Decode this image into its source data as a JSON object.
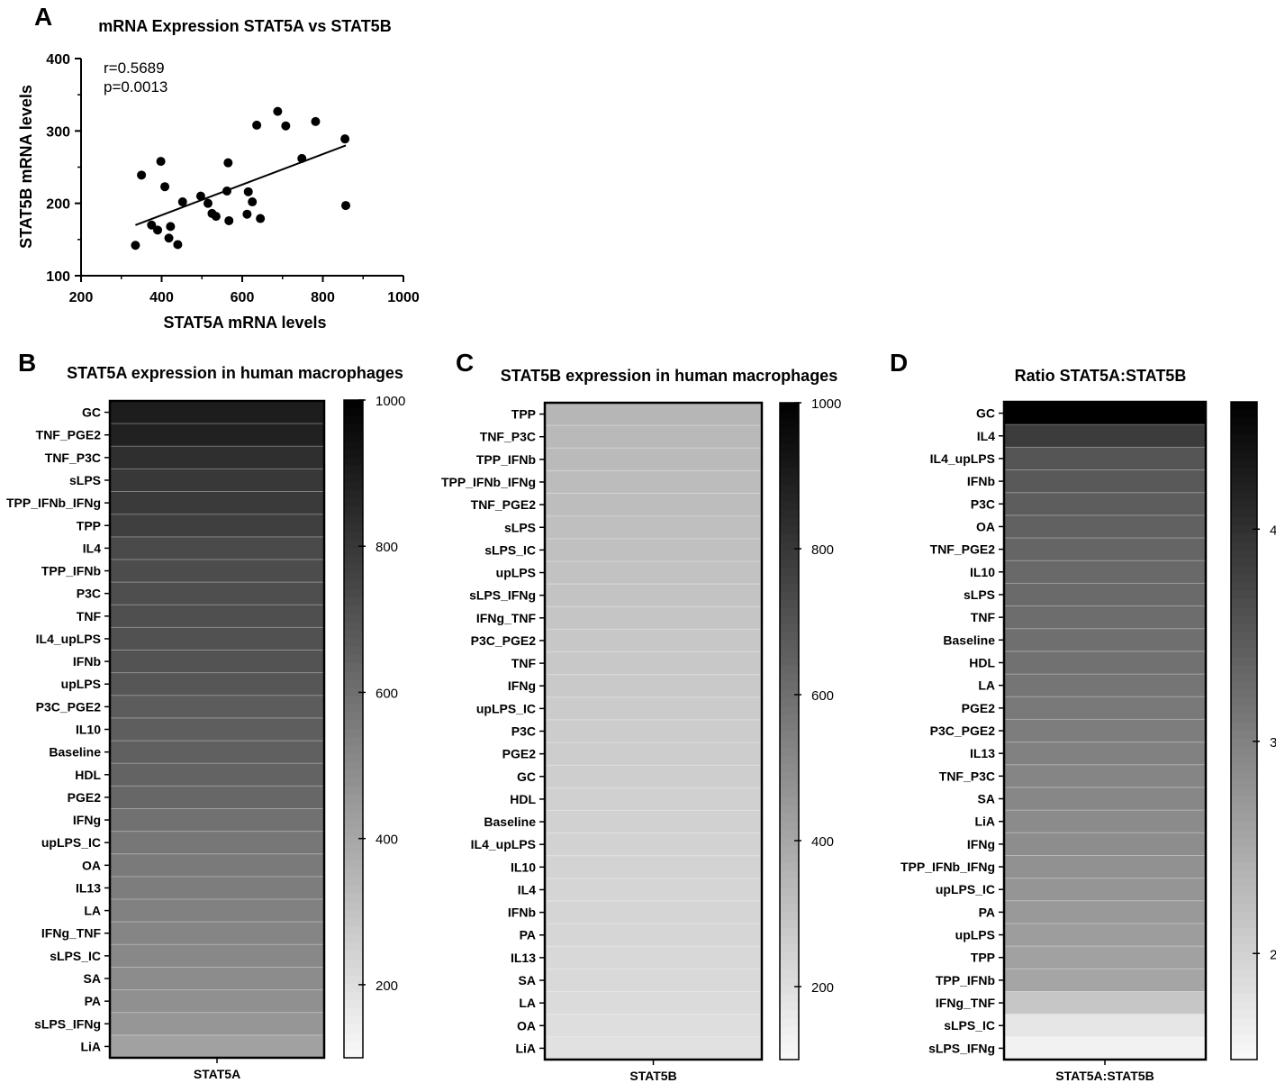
{
  "panel_letters": {
    "a": "A",
    "b": "B",
    "c": "C",
    "d": "D"
  },
  "chart_data": [
    {
      "id": "A",
      "type": "scatter",
      "title": "mRNA Expression STAT5A vs STAT5B",
      "xlabel": "STAT5A mRNA levels",
      "ylabel": "STAT5B mRNA levels",
      "xlim": [
        200,
        1000
      ],
      "ylim": [
        100,
        400
      ],
      "xticks": [
        200,
        400,
        600,
        800,
        1000
      ],
      "yticks": [
        100,
        200,
        300,
        400
      ],
      "stats": [
        "r=0.5689",
        "p=0.0013"
      ],
      "points": [
        [
          335,
          142
        ],
        [
          350,
          239
        ],
        [
          375,
          170
        ],
        [
          390,
          163
        ],
        [
          398,
          258
        ],
        [
          408,
          223
        ],
        [
          418,
          152
        ],
        [
          422,
          168
        ],
        [
          440,
          143
        ],
        [
          452,
          202
        ],
        [
          497,
          210
        ],
        [
          515,
          200
        ],
        [
          525,
          186
        ],
        [
          535,
          182
        ],
        [
          562,
          217
        ],
        [
          565,
          256
        ],
        [
          567,
          176
        ],
        [
          612,
          185
        ],
        [
          615,
          216
        ],
        [
          625,
          202
        ],
        [
          636,
          308
        ],
        [
          645,
          179
        ],
        [
          688,
          327
        ],
        [
          708,
          307
        ],
        [
          748,
          262
        ],
        [
          782,
          313
        ],
        [
          855,
          289
        ],
        [
          857,
          197
        ]
      ],
      "regression": {
        "x": [
          335,
          857
        ],
        "y": [
          170,
          280
        ]
      }
    },
    {
      "id": "B",
      "type": "heatmap",
      "title": "STAT5A expression in human macrophages",
      "xlabel": "STAT5A",
      "color_range": [
        100,
        1000
      ],
      "colorbar_ticks": [
        200,
        400,
        600,
        800,
        1000
      ],
      "rows": [
        "GC",
        "TNF_PGE2",
        "TNF_P3C",
        "sLPS",
        "TPP_IFNb_IFNg",
        "TPP",
        "IL4",
        "TPP_IFNb",
        "P3C",
        "TNF",
        "IL4_upLPS",
        "IFNb",
        "upLPS",
        "P3C_PGE2",
        "IL10",
        "Baseline",
        "HDL",
        "PGE2",
        "IFNg",
        "upLPS_IC",
        "OA",
        "IL13",
        "LA",
        "IFNg_TNF",
        "sLPS_IC",
        "SA",
        "PA",
        "sLPS_IFNg",
        "LiA"
      ],
      "values": [
        895,
        880,
        830,
        800,
        790,
        775,
        735,
        725,
        720,
        715,
        710,
        700,
        690,
        670,
        660,
        655,
        645,
        630,
        595,
        570,
        560,
        550,
        535,
        520,
        510,
        495,
        480,
        460,
        420
      ]
    },
    {
      "id": "C",
      "type": "heatmap",
      "title": "STAT5B expression in human macrophages",
      "xlabel": "STAT5B",
      "color_range": [
        100,
        1000
      ],
      "colorbar_ticks": [
        200,
        400,
        600,
        800,
        1000
      ],
      "rows": [
        "TPP",
        "TNF_P3C",
        "TPP_IFNb",
        "TPP_IFNb_IFNg",
        "TNF_PGE2",
        "sLPS",
        "sLPS_IC",
        "upLPS",
        "sLPS_IFNg",
        "IFNg_TNF",
        "P3C_PGE2",
        "TNF",
        "IFNg",
        "upLPS_IC",
        "P3C",
        "PGE2",
        "GC",
        "HDL",
        "Baseline",
        "IL4_upLPS",
        "IL10",
        "IL4",
        "IFNb",
        "PA",
        "IL13",
        "SA",
        "LA",
        "OA",
        "LiA"
      ],
      "values": [
        345,
        335,
        330,
        325,
        320,
        312,
        308,
        303,
        298,
        290,
        285,
        280,
        275,
        270,
        265,
        262,
        258,
        252,
        248,
        245,
        240,
        235,
        232,
        228,
        222,
        218,
        210,
        200,
        190
      ]
    },
    {
      "id": "D",
      "type": "heatmap",
      "title": "Ratio STAT5A:STAT5B",
      "xlabel": "STAT5A:STAT5B",
      "color_range": [
        1.5,
        4.6
      ],
      "colorbar_ticks": [
        2,
        3,
        4
      ],
      "rows": [
        "GC",
        "IL4",
        "IL4_upLPS",
        "IFNb",
        "P3C",
        "OA",
        "TNF_PGE2",
        "IL10",
        "sLPS",
        "TNF",
        "Baseline",
        "HDL",
        "LA",
        "PGE2",
        "P3C_PGE2",
        "IL13",
        "TNF_P3C",
        "SA",
        "LiA",
        "IFNg",
        "TPP_IFNb_IFNg",
        "upLPS_IC",
        "PA",
        "upLPS",
        "TPP",
        "TPP_IFNb",
        "IFNg_TNF",
        "sLPS_IC",
        "sLPS_IFNg"
      ],
      "values": [
        4.6,
        3.85,
        3.55,
        3.5,
        3.45,
        3.4,
        3.35,
        3.3,
        3.28,
        3.25,
        3.22,
        3.2,
        3.15,
        3.1,
        3.05,
        3.0,
        2.95,
        2.92,
        2.88,
        2.85,
        2.8,
        2.75,
        2.7,
        2.65,
        2.6,
        2.55,
        2.15,
        1.75,
        1.6
      ]
    }
  ]
}
